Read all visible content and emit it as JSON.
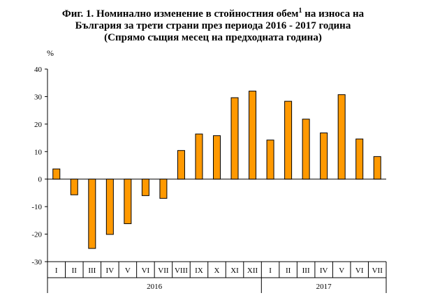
{
  "title": {
    "line1_a": "Фиг. 1. Номинално изменение  в стойностния обем",
    "line1_sup": "1",
    "line1_b": " на износа на",
    "line2": "България за трети страни през периода 2016 - 2017 година",
    "line3": "(Спрямо същия месец на предходната година)"
  },
  "chart_data": {
    "type": "bar",
    "title": "Фиг. 1. Номинално изменение  в стойностния обем1 на износа на България за трети страни през периода 2016 - 2017 година",
    "subtitle": "(Спрямо същия месец на предходната година)",
    "ylabel": "%",
    "xlabel": "",
    "ylim": [
      -30,
      40
    ],
    "yticks": [
      -30,
      -20,
      -10,
      0,
      10,
      20,
      30,
      40
    ],
    "ytick_labels": [
      "-30",
      "-20",
      "-10",
      "0",
      "10",
      "20",
      "30",
      "40"
    ],
    "grid": false,
    "bar_color": "#FF9900",
    "categories": [
      "I",
      "II",
      "III",
      "IV",
      "V",
      "VI",
      "VII",
      "VIII",
      "IX",
      "X",
      "XI",
      "XII",
      "I",
      "II",
      "III",
      "IV",
      "V",
      "VI",
      "VII"
    ],
    "values": [
      3.7,
      -5.7,
      -25.2,
      -20.1,
      -16.2,
      -6.0,
      -7.0,
      10.4,
      16.4,
      15.8,
      29.6,
      32.0,
      14.2,
      28.3,
      21.8,
      16.8,
      30.7,
      14.6,
      8.2
    ],
    "groups": [
      {
        "label": "2016",
        "count": 12
      },
      {
        "label": "2017",
        "count": 7
      }
    ]
  }
}
